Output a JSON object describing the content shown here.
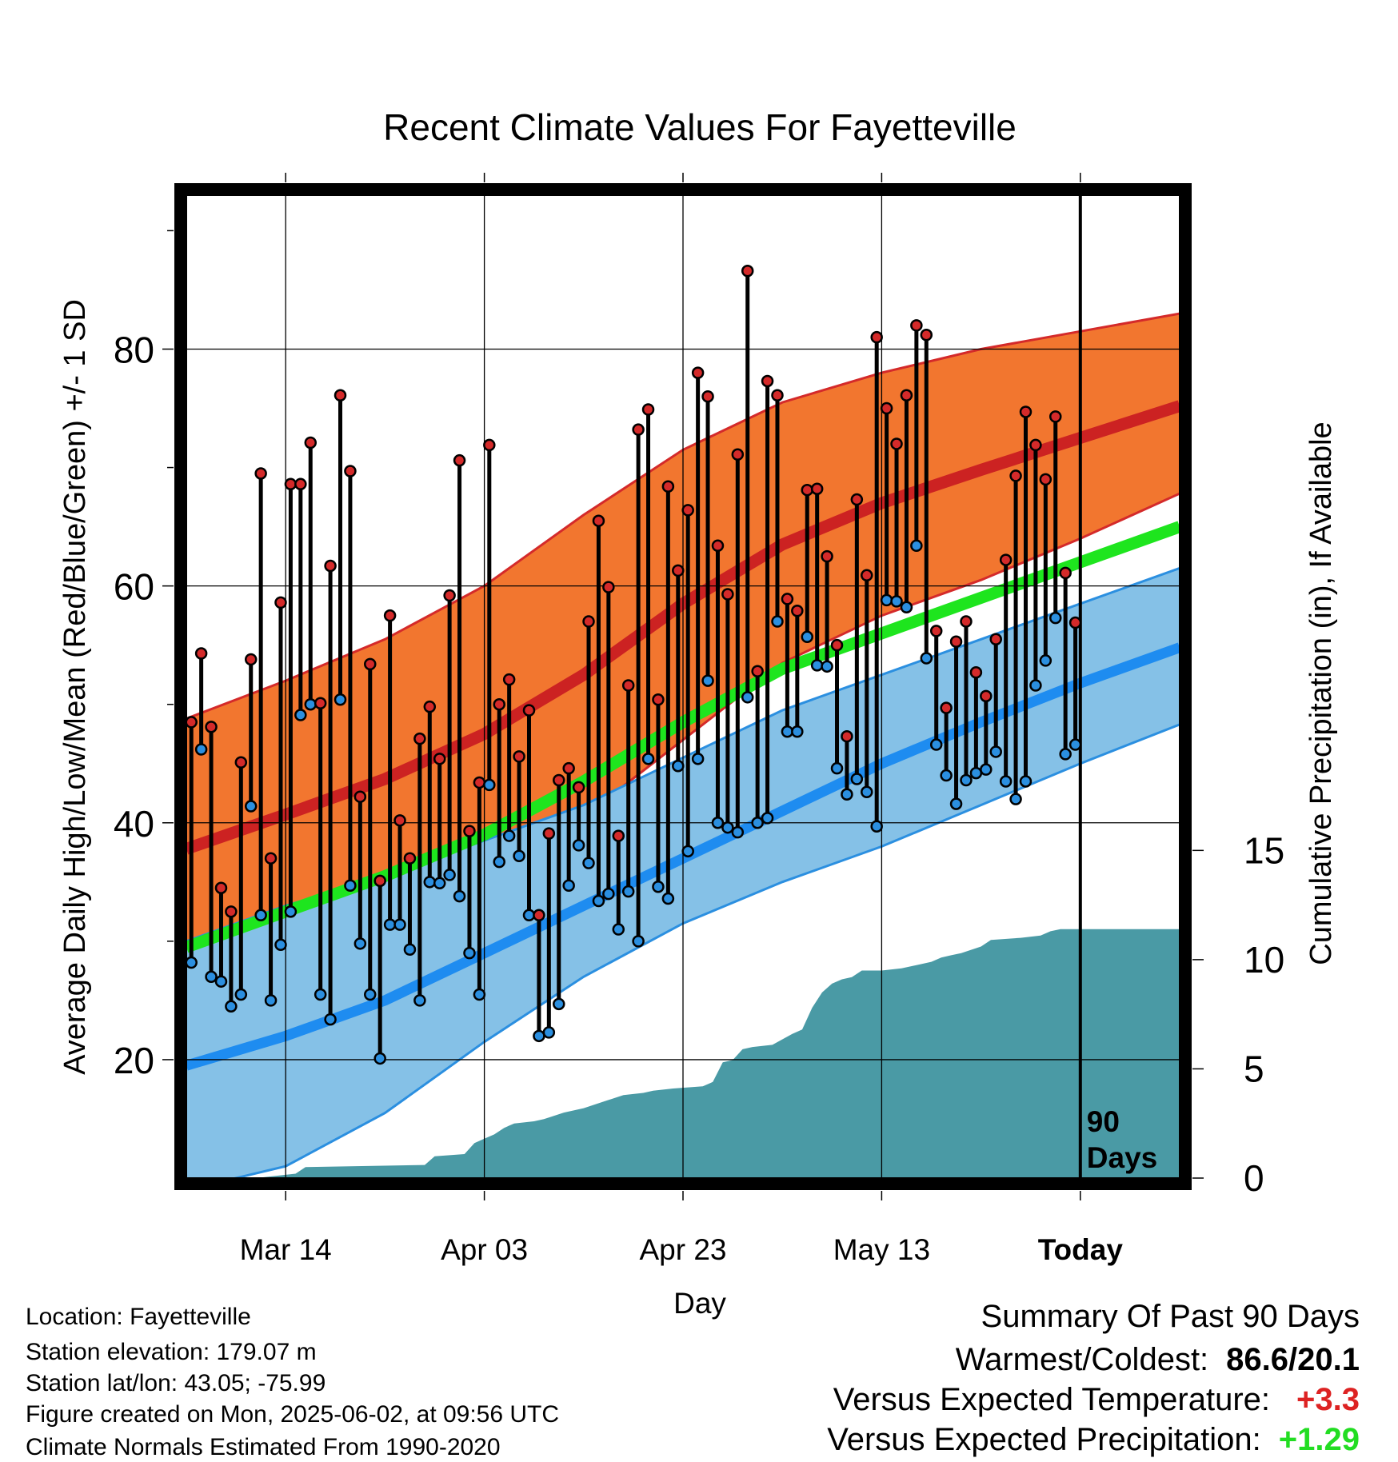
{
  "chart_data": {
    "type": "line",
    "title": "Recent Climate Values For Fayetteville",
    "xlabel": "Day",
    "ylabel": "Average Daily High/Low/Mean (Red/Blue/Green) +/- 1 SD",
    "y2label": "Cumulative Precipitation (in), If Available",
    "x_ticks": [
      "Mar 14",
      "Apr 03",
      "Apr 23",
      "May 13",
      "Today"
    ],
    "y_ticks": [
      20,
      40,
      60,
      80
    ],
    "y2_ticks": [
      0,
      5,
      10,
      15
    ],
    "ylim": [
      10,
      93
    ],
    "y2lim": [
      0,
      45
    ],
    "today_marker_label": [
      "90",
      "Days"
    ],
    "grid": true,
    "days_span": 100,
    "today_index": 90,
    "normals": {
      "days": [
        0,
        10,
        20,
        30,
        40,
        50,
        60,
        70,
        80,
        90,
        100
      ],
      "high_mean": [
        37.8,
        40.7,
        43.7,
        47.5,
        52.5,
        58.5,
        63.5,
        67.0,
        69.8,
        72.5,
        75.2
      ],
      "high_upper": [
        48.8,
        52.0,
        55.5,
        60.0,
        66.0,
        71.5,
        75.5,
        78.0,
        80.0,
        81.5,
        83.0
      ],
      "high_lower": [
        27.0,
        29.5,
        32.5,
        36.0,
        40.5,
        47.0,
        53.5,
        57.5,
        60.5,
        64.0,
        67.8
      ],
      "low_mean": [
        19.5,
        22.0,
        25.0,
        29.0,
        33.0,
        37.0,
        41.0,
        45.0,
        48.5,
        51.8,
        54.8
      ],
      "low_upper": [
        30.0,
        33.0,
        35.5,
        38.5,
        41.5,
        45.5,
        49.5,
        52.5,
        55.5,
        58.5,
        61.5
      ],
      "low_lower": [
        9.0,
        11.0,
        15.5,
        21.5,
        27.0,
        31.5,
        35.0,
        38.0,
        41.5,
        45.0,
        48.3
      ],
      "mean": [
        29.5,
        32.5,
        35.5,
        39.0,
        43.5,
        48.5,
        53.0,
        56.0,
        59.0,
        62.0,
        65.0
      ]
    },
    "series": [
      {
        "name": "High",
        "color": "#d42a2a",
        "values": [
          48.5,
          54.3,
          48.1,
          34.5,
          32.5,
          45.1,
          53.8,
          69.5,
          37.0,
          58.6,
          68.6,
          68.6,
          72.1,
          50.1,
          61.7,
          76.1,
          69.7,
          42.2,
          53.4,
          35.1,
          57.5,
          40.2,
          37.0,
          47.1,
          49.8,
          45.4,
          59.2,
          70.6,
          39.3,
          43.4,
          71.9,
          50.0,
          52.1,
          45.6,
          49.5,
          32.2,
          39.1,
          43.6,
          44.6,
          43.0,
          57.0,
          65.5,
          59.9,
          38.9,
          51.6,
          73.2,
          74.9,
          50.4,
          68.4,
          61.3,
          66.4,
          78.0,
          76.0,
          63.4,
          59.3,
          71.1,
          86.6,
          52.8,
          77.3,
          76.1,
          58.9,
          57.9,
          68.1,
          68.2,
          62.5,
          55.0,
          47.3,
          67.3,
          60.9,
          81.0,
          75.0,
          72.0,
          76.1,
          82.0,
          81.2,
          56.2,
          49.7,
          55.3,
          57.0,
          52.7,
          50.7,
          55.5,
          62.2,
          69.3,
          74.7,
          71.9,
          69.0,
          74.3,
          61.1,
          56.9
        ]
      },
      {
        "name": "Low",
        "color": "#2b8fe0",
        "values": [
          28.2,
          46.2,
          27.0,
          26.6,
          24.5,
          25.5,
          41.4,
          32.2,
          25.0,
          29.7,
          32.5,
          49.1,
          50.0,
          25.5,
          23.4,
          50.4,
          34.7,
          29.8,
          25.5,
          20.1,
          31.4,
          31.4,
          29.3,
          25.0,
          35.0,
          34.9,
          35.6,
          33.8,
          29.0,
          25.5,
          43.2,
          36.7,
          38.9,
          37.2,
          32.2,
          22.0,
          22.3,
          24.7,
          34.7,
          38.1,
          36.6,
          33.4,
          34.0,
          31.0,
          34.2,
          30.0,
          45.4,
          34.6,
          33.6,
          44.8,
          37.6,
          45.4,
          52.0,
          40.0,
          39.6,
          39.2,
          50.6,
          40.0,
          40.4,
          57.0,
          47.7,
          47.7,
          55.7,
          53.3,
          53.2,
          44.6,
          42.4,
          43.7,
          42.6,
          39.7,
          58.8,
          58.7,
          58.2,
          63.4,
          53.9,
          46.6,
          44.0,
          41.6,
          43.6,
          44.2,
          44.5,
          46.0,
          43.5,
          42.0,
          43.5,
          51.6,
          53.7,
          57.3,
          45.8,
          46.6
        ]
      },
      {
        "name": "Cumulative Precipitation",
        "color": "#4a9aa5",
        "days": [
          0,
          7,
          11,
          12,
          24,
          25,
          28,
          29,
          30,
          31,
          32,
          33,
          35,
          36,
          38,
          40,
          42,
          44,
          46,
          47,
          49,
          52,
          53,
          54,
          55,
          56,
          57,
          59,
          61,
          62,
          63,
          64,
          65,
          66,
          67,
          68,
          70,
          72,
          74,
          75,
          76,
          77,
          78,
          80,
          81,
          84,
          86,
          87,
          88,
          90,
          100
        ],
        "values": [
          0,
          0,
          0.2,
          0.5,
          0.6,
          1.0,
          1.1,
          1.6,
          1.8,
          2.0,
          2.3,
          2.5,
          2.6,
          2.7,
          3.0,
          3.2,
          3.5,
          3.8,
          3.9,
          4.0,
          4.1,
          4.2,
          4.4,
          5.3,
          5.4,
          5.9,
          6.0,
          6.1,
          6.6,
          6.8,
          7.8,
          8.5,
          8.9,
          9.1,
          9.2,
          9.5,
          9.5,
          9.6,
          9.8,
          9.9,
          10.1,
          10.2,
          10.3,
          10.6,
          10.9,
          11.0,
          11.1,
          11.3,
          11.4,
          11.4,
          11.4
        ]
      }
    ],
    "colors": {
      "high_band": "#f2762f",
      "high_edge": "#d42a2a",
      "high_mean": "#cc2222",
      "low_band": "#85c1e7",
      "low_edge": "#2b8fe0",
      "low_mean": "#1e8cf0",
      "mean_line": "#1ee51e",
      "precip": "#4a9aa5"
    }
  },
  "info": {
    "location": "Location: Fayetteville",
    "elevation": "Station elevation: 179.07 m",
    "latlon": "Station lat/lon: 43.05; -75.99",
    "created": "Figure created on Mon, 2025-06-02, at 09:56 UTC",
    "normals": "Climate Normals Estimated From 1990-2020"
  },
  "summary": {
    "title": "Summary Of Past 90 Days",
    "warm_cold_label": "Warmest/Coldest:",
    "warm_cold_value": "86.6/20.1",
    "temp_label": "Versus Expected Temperature:",
    "temp_value": "+3.3",
    "temp_color": "#dd2222",
    "precip_label": "Versus Expected Precipitation:",
    "precip_value": "+1.29",
    "precip_color": "#22dd22"
  }
}
